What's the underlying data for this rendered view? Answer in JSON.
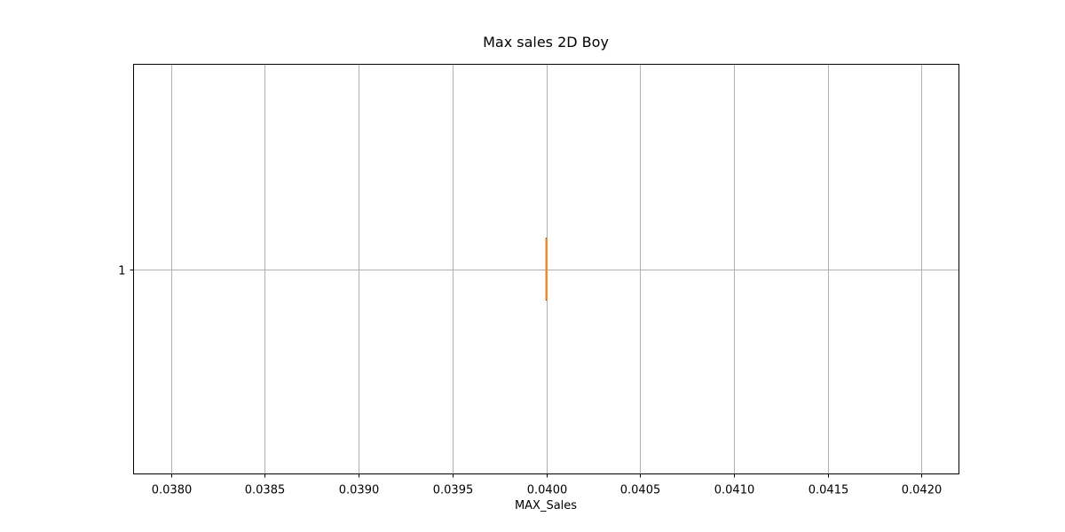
{
  "chart_data": {
    "type": "boxplot",
    "orientation": "horizontal",
    "title": "Max sales 2D Boy",
    "xlabel": "MAX_Sales",
    "ylabel": "",
    "xlim": [
      0.0378,
      0.0422
    ],
    "x_ticks": [
      0.038,
      0.0385,
      0.039,
      0.0395,
      0.04,
      0.0405,
      0.041,
      0.0415,
      0.042
    ],
    "x_tick_labels": [
      "0.0380",
      "0.0385",
      "0.0390",
      "0.0395",
      "0.0400",
      "0.0405",
      "0.0410",
      "0.0415",
      "0.0420"
    ],
    "y_tick_labels": [
      "1"
    ],
    "grid": true,
    "boxes": [
      {
        "label": "1",
        "min": 0.04,
        "q1": 0.04,
        "median": 0.04,
        "q3": 0.04,
        "max": 0.04
      }
    ],
    "colors": {
      "box": "#000000",
      "median": "#ff7f0e",
      "grid": "#b0b0b0",
      "spine": "#000000"
    }
  }
}
